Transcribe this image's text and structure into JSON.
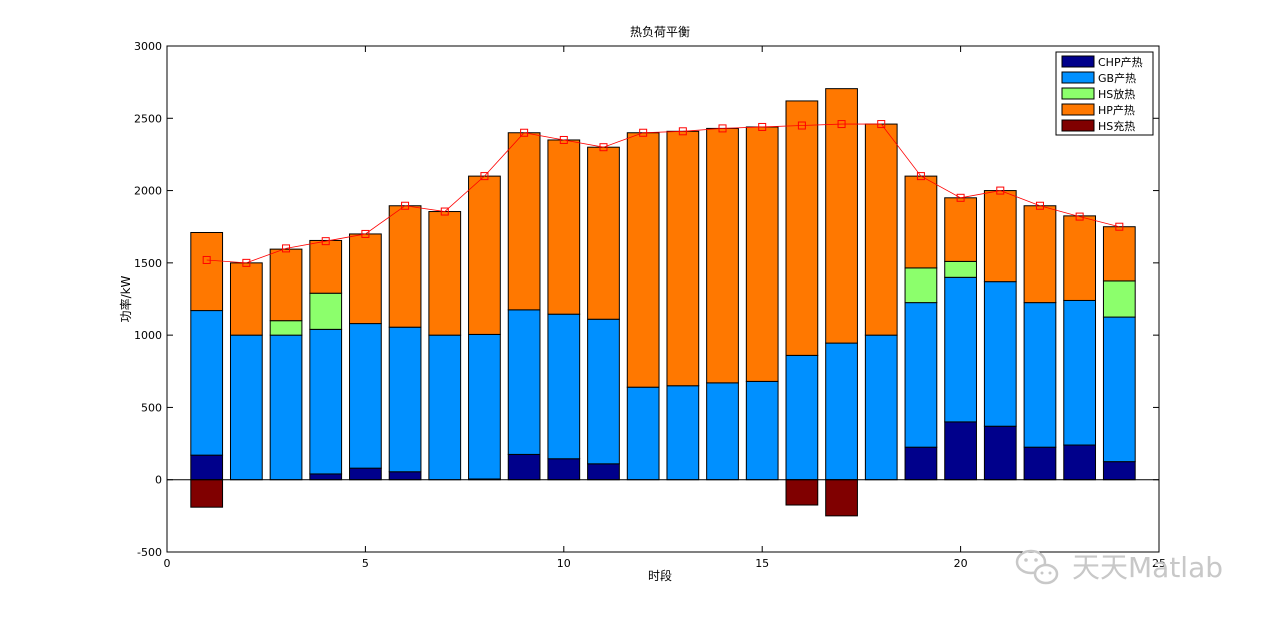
{
  "chart_data": {
    "type": "bar",
    "stacked": true,
    "title": "热负荷平衡",
    "xlabel": "时段",
    "ylabel": "功率/kW",
    "xlim": [
      0,
      25
    ],
    "ylim": [
      -500,
      3000
    ],
    "xticks": [
      0,
      5,
      10,
      15,
      20,
      25
    ],
    "yticks": [
      -500,
      0,
      500,
      1000,
      1500,
      2000,
      2500,
      3000
    ],
    "xtick_labels": [
      "0",
      "5",
      "10",
      "15",
      "20",
      "25"
    ],
    "ytick_labels": [
      "-500",
      "0",
      "500",
      "1000",
      "1500",
      "2000",
      "2500",
      "3000"
    ],
    "grid": false,
    "legend_position": "top-right",
    "categories": [
      1,
      2,
      3,
      4,
      5,
      6,
      7,
      8,
      9,
      10,
      11,
      12,
      13,
      14,
      15,
      16,
      17,
      18,
      19,
      20,
      21,
      22,
      23,
      24
    ],
    "series": [
      {
        "name": "CHP产热",
        "color": "#00008b",
        "values": [
          170,
          0,
          0,
          40,
          80,
          55,
          0,
          5,
          175,
          145,
          110,
          0,
          0,
          0,
          0,
          0,
          0,
          0,
          225,
          400,
          370,
          225,
          240,
          125
        ]
      },
      {
        "name": "GB产热",
        "color": "#0090ff",
        "values": [
          1000,
          1000,
          1000,
          1000,
          1000,
          1000,
          1000,
          1000,
          1000,
          1000,
          1000,
          640,
          650,
          670,
          680,
          860,
          945,
          1000,
          1000,
          1000,
          1000,
          1000,
          1000,
          1000
        ]
      },
      {
        "name": "HS放热",
        "color": "#8cff6c",
        "values": [
          0,
          0,
          100,
          250,
          0,
          0,
          0,
          0,
          0,
          0,
          0,
          0,
          0,
          0,
          0,
          0,
          0,
          0,
          240,
          110,
          0,
          0,
          0,
          250
        ]
      },
      {
        "name": "HP产热",
        "color": "#ff7800",
        "values": [
          540,
          500,
          495,
          365,
          620,
          840,
          855,
          1095,
          1225,
          1205,
          1190,
          1760,
          1760,
          1760,
          1760,
          1760,
          1760,
          1460,
          635,
          440,
          630,
          670,
          585,
          375
        ]
      },
      {
        "name": "HS充热",
        "color": "#800000",
        "values": [
          -190,
          0,
          0,
          0,
          0,
          0,
          0,
          0,
          0,
          0,
          0,
          0,
          0,
          0,
          0,
          -175,
          -250,
          0,
          0,
          0,
          0,
          0,
          0,
          0
        ]
      }
    ],
    "load_line": {
      "color": "#ff0000",
      "values": [
        1520,
        1500,
        1600,
        1650,
        1700,
        1895,
        1855,
        2100,
        2400,
        2350,
        2300,
        2400,
        2410,
        2430,
        2440,
        2450,
        2460,
        2460,
        2100,
        1950,
        2000,
        1895,
        1820,
        1750
      ]
    }
  },
  "watermark": {
    "text": "天天Matlab",
    "icon": "wechat-icon"
  }
}
